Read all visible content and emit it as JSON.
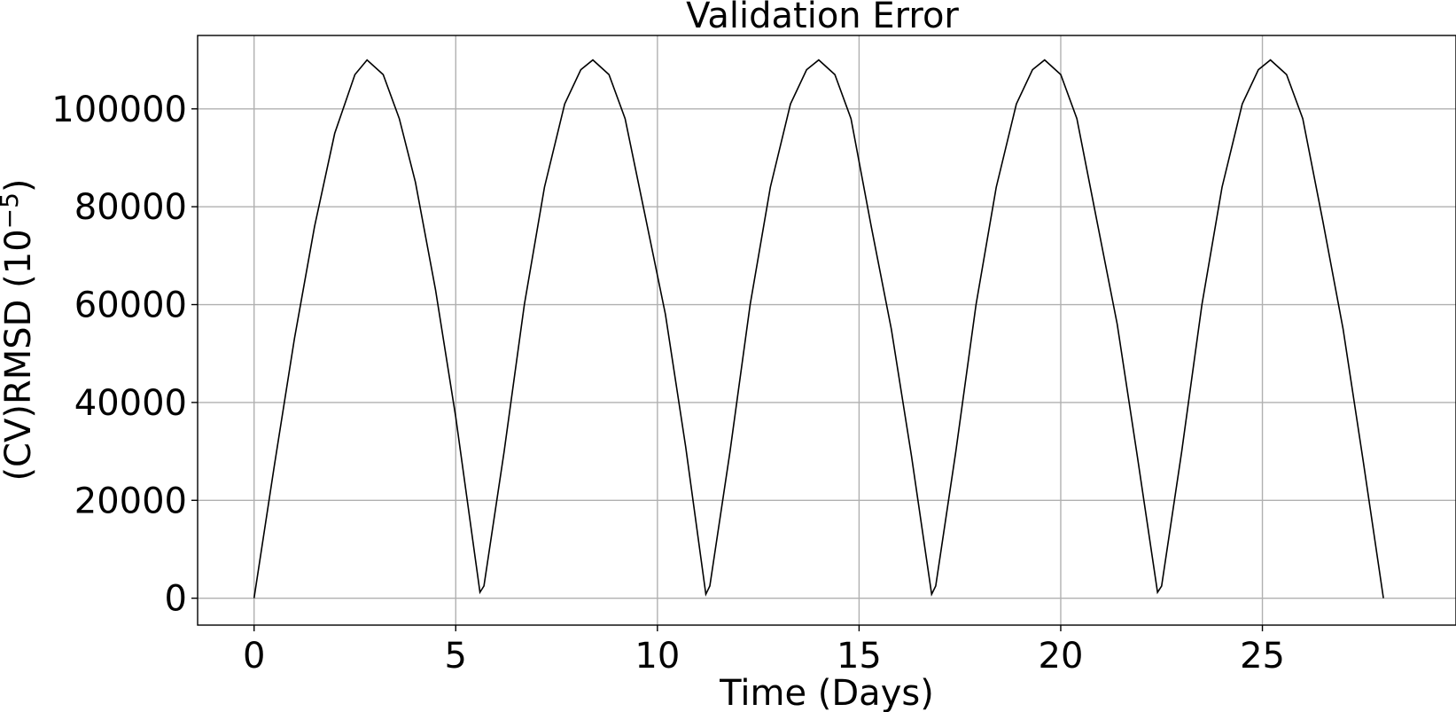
{
  "chart_data": {
    "type": "line",
    "title": "Validation Error",
    "xlabel": "Time (Days)",
    "ylabel_base": "(CV)RMSD (10",
    "ylabel_sup": "−5",
    "ylabel_end": ")",
    "xlim": [
      -1.4,
      29.8
    ],
    "ylim": [
      -5500,
      115000
    ],
    "xticks": [
      0,
      5,
      10,
      15,
      20,
      25
    ],
    "yticks": [
      0,
      20000,
      40000,
      60000,
      80000,
      100000
    ],
    "xtick_labels": [
      "0",
      "5",
      "10",
      "15",
      "20",
      "25"
    ],
    "ytick_labels": [
      "0",
      "20000",
      "40000",
      "60000",
      "80000",
      "100000"
    ],
    "grid": true,
    "series": [
      {
        "color": "#000000",
        "x": [
          0,
          0.5,
          1.0,
          1.5,
          2.0,
          2.5,
          2.8,
          3.2,
          3.6,
          4.0,
          4.5,
          5.0,
          5.6,
          5.7,
          6.2,
          6.7,
          7.2,
          7.7,
          8.1,
          8.4,
          8.8,
          9.2,
          9.7,
          10.2,
          10.7,
          11.2,
          11.3,
          11.8,
          12.3,
          12.8,
          13.3,
          13.7,
          14.0,
          14.4,
          14.8,
          15.3,
          15.8,
          16.3,
          16.8,
          16.9,
          17.4,
          17.9,
          18.4,
          18.9,
          19.3,
          19.6,
          20.0,
          20.4,
          20.9,
          21.4,
          21.9,
          22.4,
          22.5,
          23.0,
          23.5,
          24.0,
          24.5,
          24.9,
          25.2,
          25.6,
          26.0,
          26.5,
          27.0,
          27.5,
          28.0
        ],
        "y": [
          0,
          27000,
          53000,
          76000,
          95000,
          107000,
          110000,
          107000,
          98000,
          85000,
          63000,
          37000,
          1200,
          2500,
          30000,
          60000,
          84000,
          101000,
          108000,
          110000,
          107000,
          98000,
          78000,
          58000,
          31000,
          800,
          2500,
          30000,
          60000,
          84000,
          101000,
          108000,
          110000,
          107000,
          98000,
          76000,
          55000,
          29000,
          800,
          2500,
          30000,
          60000,
          84000,
          101000,
          108000,
          110000,
          107000,
          98000,
          77000,
          56000,
          29000,
          1200,
          2500,
          30000,
          60000,
          84000,
          101000,
          108000,
          110000,
          107000,
          98000,
          77000,
          55000,
          28000,
          0
        ]
      }
    ]
  }
}
